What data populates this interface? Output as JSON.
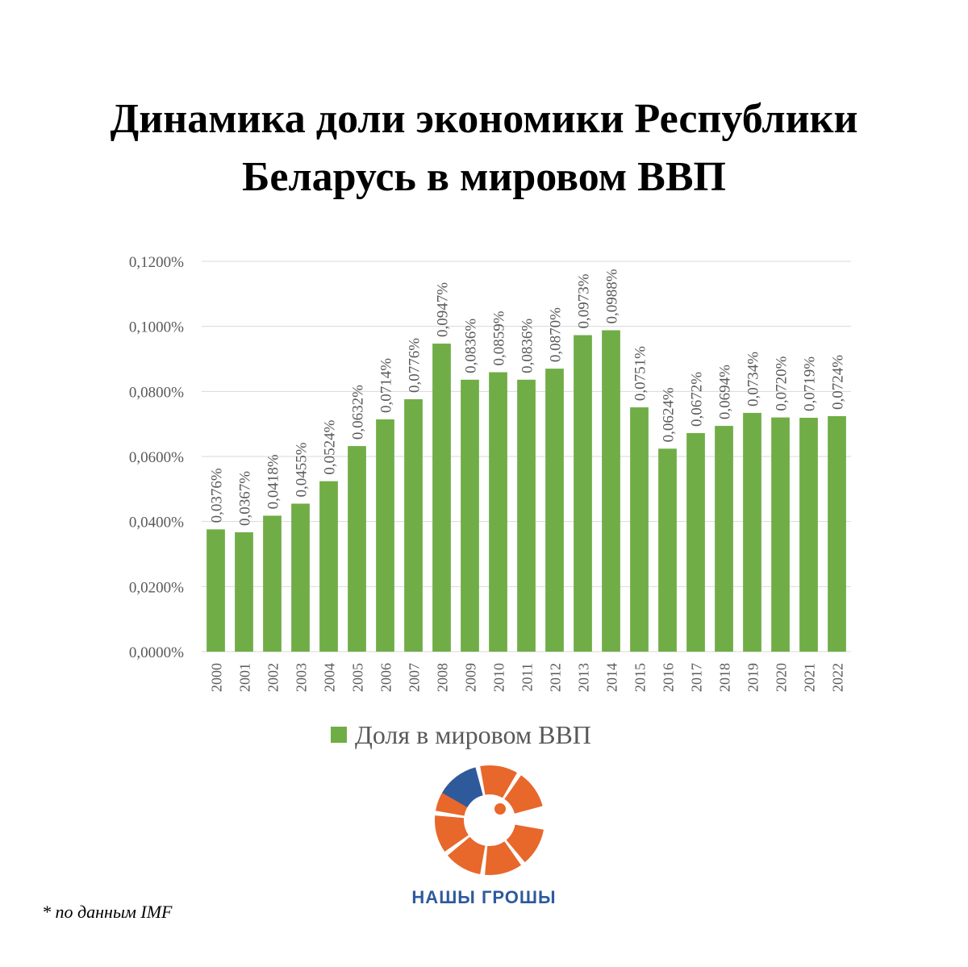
{
  "title_lines": [
    "Динамика доли экономики Республики",
    "Беларусь в мировом ВВП"
  ],
  "footnote": "* по данным IMF",
  "brand": "НАШЫ ГРОШЫ",
  "colors": {
    "bar": "#70ad47",
    "grid": "#d9d9d9",
    "text": "#595959",
    "logo_orange": "#e8672b",
    "logo_blue": "#2e5a9c"
  },
  "chart_data": {
    "type": "bar",
    "categories": [
      "2000",
      "2001",
      "2002",
      "2003",
      "2004",
      "2005",
      "2006",
      "2007",
      "2008",
      "2009",
      "2010",
      "2011",
      "2012",
      "2013",
      "2014",
      "2015",
      "2016",
      "2017",
      "2018",
      "2019",
      "2020",
      "2021",
      "2022"
    ],
    "series": [
      {
        "name": "Доля в мировом ВВП",
        "values": [
          0.0376,
          0.0367,
          0.0418,
          0.0455,
          0.0524,
          0.0632,
          0.0714,
          0.0776,
          0.0947,
          0.0836,
          0.0859,
          0.0836,
          0.087,
          0.0973,
          0.0988,
          0.0751,
          0.0624,
          0.0672,
          0.0694,
          0.0734,
          0.072,
          0.0719,
          0.0724
        ],
        "labels": [
          "0,0376%",
          "0,0367%",
          "0,0418%",
          "0,0455%",
          "0,0524%",
          "0,0632%",
          "0,0714%",
          "0,0776%",
          "0,0947%",
          "0,0836%",
          "0,0859%",
          "0,0836%",
          "0,0870%",
          "0,0973%",
          "0,0988%",
          "0,0751%",
          "0,0624%",
          "0,0672%",
          "0,0694%",
          "0,0734%",
          "0,0720%",
          "0,0719%",
          "0,0724%"
        ]
      }
    ],
    "yticks": [
      0,
      0.02,
      0.04,
      0.06,
      0.08,
      0.1,
      0.12
    ],
    "ytick_labels": [
      "0,0000%",
      "0,0200%",
      "0,0400%",
      "0,0600%",
      "0,0800%",
      "0,1000%",
      "0,1200%"
    ],
    "ylim": [
      0,
      0.12
    ],
    "grid": true,
    "legend": "bottom-center",
    "legend_label": "Доля в мировом ВВП"
  }
}
